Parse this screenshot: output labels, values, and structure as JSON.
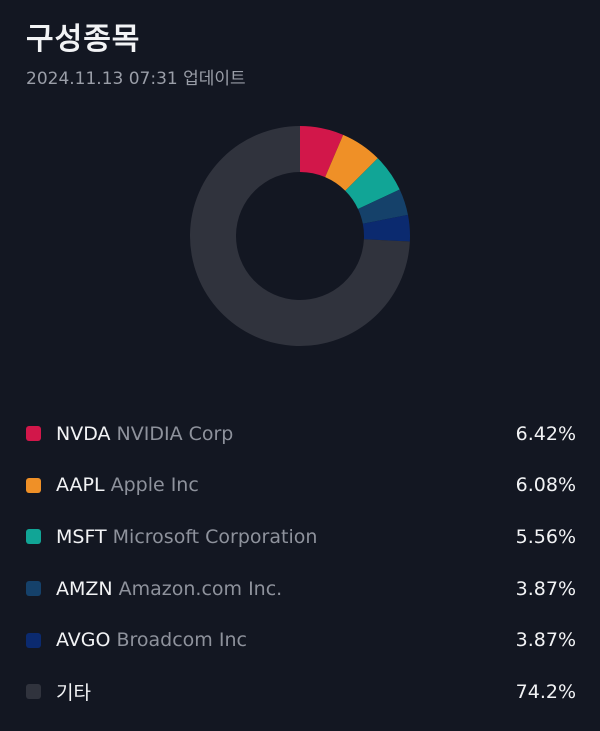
{
  "header": {
    "title": "구성종목",
    "updated": "2024.11.13 07:31 업데이트"
  },
  "chart_data": {
    "type": "pie",
    "donut": true,
    "categories": [
      "NVDA",
      "AAPL",
      "MSFT",
      "AMZN",
      "AVGO",
      "기타"
    ],
    "values": [
      6.42,
      6.08,
      5.56,
      3.87,
      3.87,
      74.2
    ],
    "colors": [
      "#d2174a",
      "#ef9027",
      "#11a596",
      "#15416a",
      "#0b2a6f",
      "#30333d"
    ]
  },
  "legend": [
    {
      "ticker": "NVDA",
      "name": "NVIDIA Corp",
      "percent": "6.42%",
      "color": "#d2174a"
    },
    {
      "ticker": "AAPL",
      "name": "Apple Inc",
      "percent": "6.08%",
      "color": "#ef9027"
    },
    {
      "ticker": "MSFT",
      "name": "Microsoft Corporation",
      "percent": "5.56%",
      "color": "#11a596"
    },
    {
      "ticker": "AMZN",
      "name": "Amazon.com Inc.",
      "percent": "3.87%",
      "color": "#15416a"
    },
    {
      "ticker": "AVGO",
      "name": "Broadcom Inc",
      "percent": "3.87%",
      "color": "#0b2a6f"
    },
    {
      "ticker": "기타",
      "name": "",
      "percent": "74.2%",
      "color": "#30333d"
    }
  ]
}
